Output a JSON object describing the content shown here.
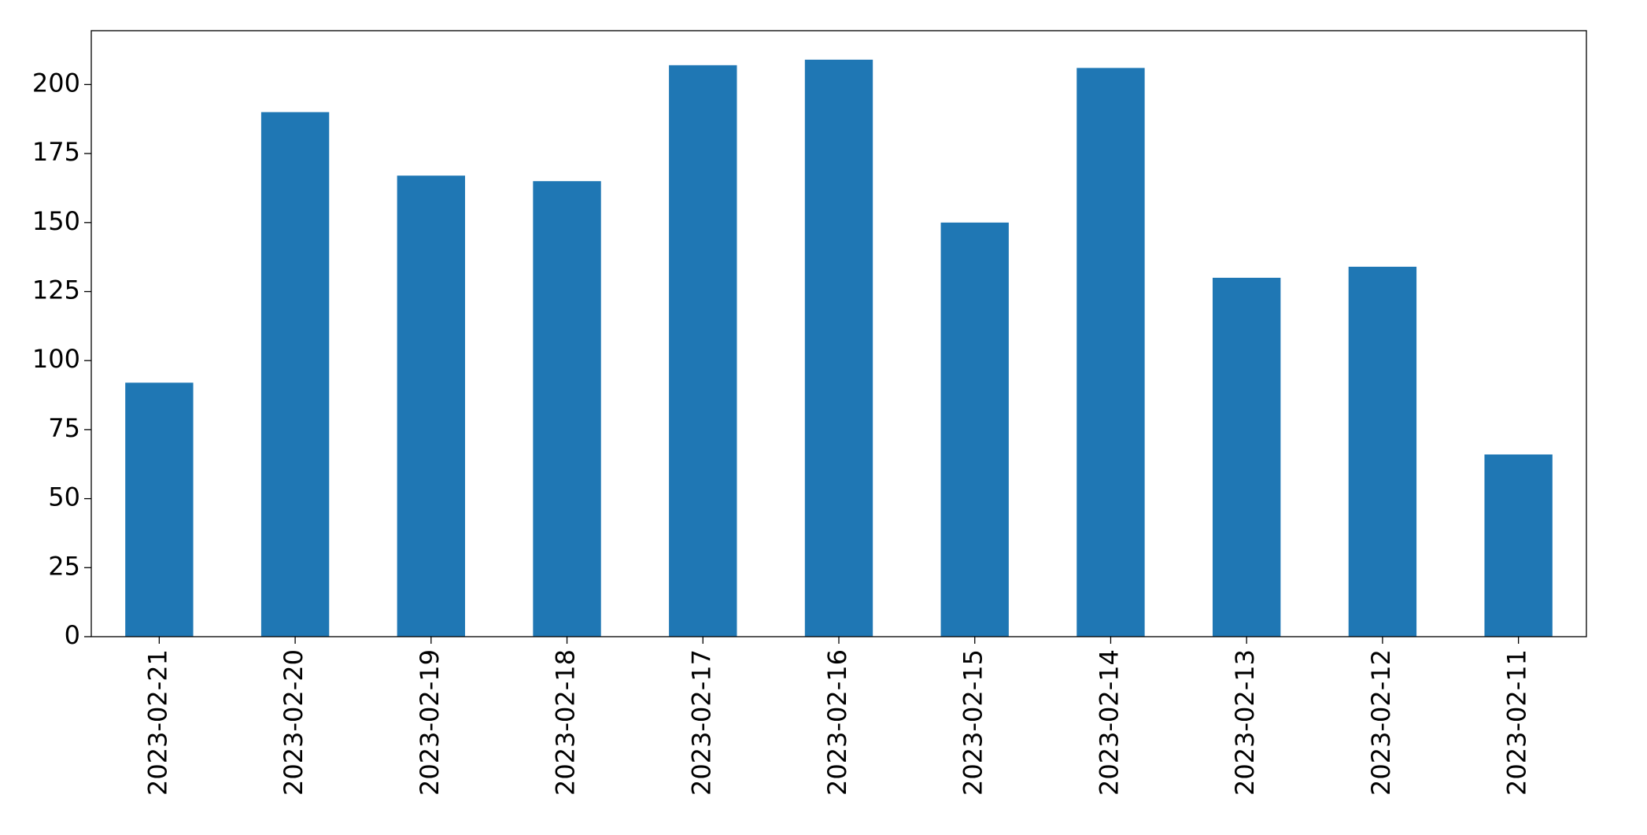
{
  "chart_data": {
    "type": "bar",
    "categories": [
      "2023-02-21",
      "2023-02-20",
      "2023-02-19",
      "2023-02-18",
      "2023-02-17",
      "2023-02-16",
      "2023-02-15",
      "2023-02-14",
      "2023-02-13",
      "2023-02-12",
      "2023-02-11"
    ],
    "values": [
      92,
      190,
      167,
      165,
      207,
      209,
      150,
      206,
      130,
      134,
      66
    ],
    "color": "#1f77b4",
    "ylim": [
      0,
      219.5
    ],
    "yticks": [
      0,
      25,
      50,
      75,
      100,
      125,
      150,
      175,
      200
    ],
    "grid": false
  }
}
